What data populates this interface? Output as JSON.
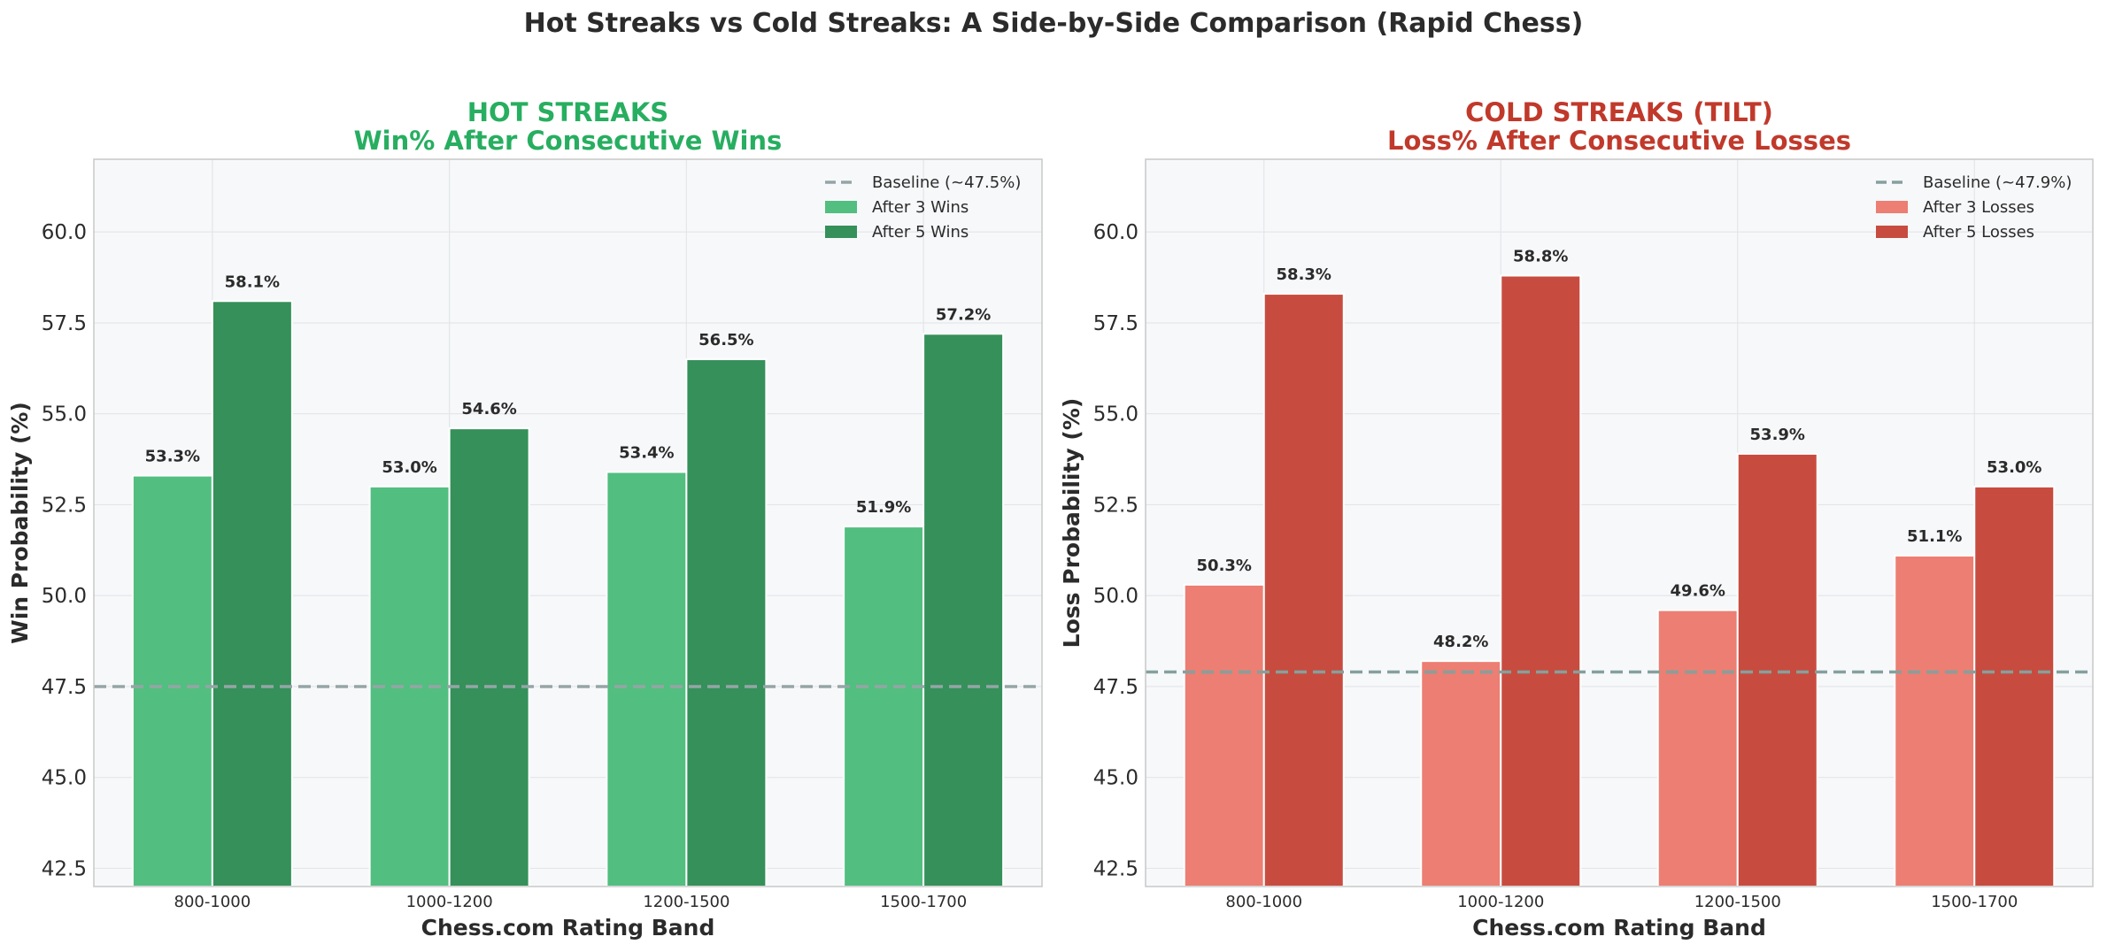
{
  "figure": {
    "title": "Hot Streaks vs Cold Streaks: A Side-by-Side Comparison (Rapid Chess)"
  },
  "chart_data": [
    {
      "type": "bar",
      "title_line1": "HOT STREAKS",
      "title_line2": "Win% After Consecutive Wins",
      "title_color": "#27ae60",
      "xlabel": "Chess.com Rating Band",
      "ylabel": "Win Probability (%)",
      "ylim": [
        42,
        62
      ],
      "yticks": [
        42.5,
        45.0,
        47.5,
        50.0,
        52.5,
        55.0,
        57.5,
        60.0
      ],
      "grid": true,
      "legend_position": "top-right",
      "categories": [
        "800-1000",
        "1000-1200",
        "1200-1500",
        "1500-1700"
      ],
      "series": [
        {
          "name": "After 3 Wins",
          "color": "#52be80",
          "values": [
            53.3,
            53.0,
            53.4,
            51.9
          ]
        },
        {
          "name": "After 5 Wins",
          "color": "#35905a",
          "values": [
            58.1,
            54.6,
            56.5,
            57.2
          ]
        }
      ],
      "baseline": {
        "label": "Baseline (~47.5%)",
        "value": 47.5,
        "color": "#95a5a6"
      }
    },
    {
      "type": "bar",
      "title_line1": "COLD STREAKS (TILT)",
      "title_line2": "Loss% After Consecutive Losses",
      "title_color": "#c0392b",
      "xlabel": "Chess.com Rating Band",
      "ylabel": "Loss Probability (%)",
      "ylim": [
        42,
        62
      ],
      "yticks": [
        42.5,
        45.0,
        47.5,
        50.0,
        52.5,
        55.0,
        57.5,
        60.0
      ],
      "grid": true,
      "legend_position": "top-right",
      "categories": [
        "800-1000",
        "1000-1200",
        "1200-1500",
        "1500-1700"
      ],
      "series": [
        {
          "name": "After 3 Losses",
          "color": "#ec7e73",
          "values": [
            50.3,
            48.2,
            49.6,
            51.1
          ]
        },
        {
          "name": "After 5 Losses",
          "color": "#c74c3f",
          "values": [
            58.3,
            58.8,
            53.9,
            53.0
          ]
        }
      ],
      "baseline": {
        "label": "Baseline (~47.9%)",
        "value": 47.9,
        "color": "#85a09d"
      }
    }
  ]
}
